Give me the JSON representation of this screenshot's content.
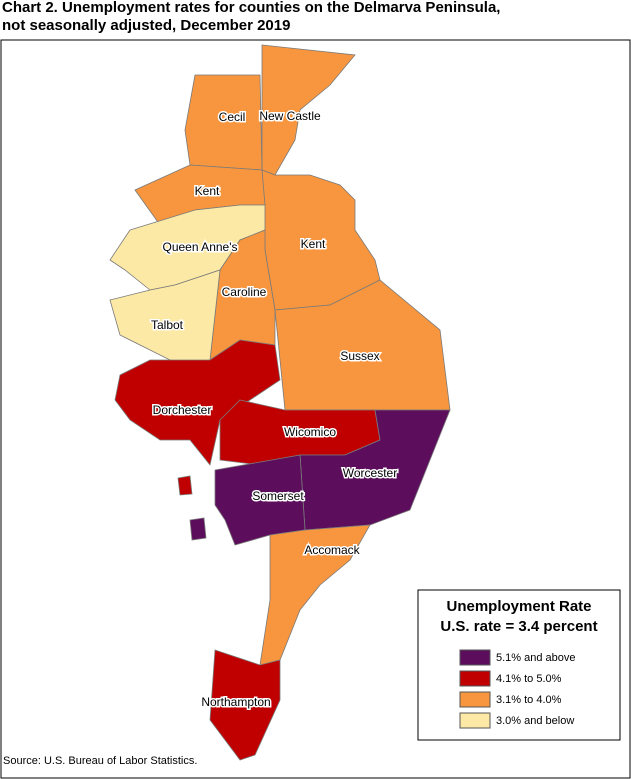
{
  "title": [
    "Chart 2. Unemployment rates for counties on the Delmarva Peninsula,",
    "not seasonally adjusted, December 2019"
  ],
  "counties": [
    {
      "name": "New Castle",
      "color": "#f7963e"
    },
    {
      "name": "Kent",
      "color": "#f7963e"
    },
    {
      "name": "Sussex",
      "color": "#f7963e"
    },
    {
      "name": "Cecil",
      "color": "#f7963e"
    },
    {
      "name": "Kent",
      "color": "#f7963e"
    },
    {
      "name": "Queen Anne's",
      "color": "#fde9a6"
    },
    {
      "name": "Caroline",
      "color": "#f7963e"
    },
    {
      "name": "Talbot",
      "color": "#fde9a6"
    },
    {
      "name": "Dorchester",
      "color": "#c00000"
    },
    {
      "name": "Wicomico",
      "color": "#c00000"
    },
    {
      "name": "Worcester",
      "color": "#5c0e5c"
    },
    {
      "name": "Somerset",
      "color": "#5c0e5c"
    },
    {
      "name": "Accomack",
      "color": "#f7963e"
    },
    {
      "name": "Northampton",
      "color": "#c00000"
    }
  ],
  "legend": {
    "title": "Unemployment Rate",
    "subtitle": "U.S. rate = 3.4 percent",
    "items": [
      {
        "label": "5.1% and above",
        "color": "#5c0e5c"
      },
      {
        "label": "4.1% to 5.0%",
        "color": "#c00000"
      },
      {
        "label": "3.1% to 4.0%",
        "color": "#f7963e"
      },
      {
        "label": "3.0% and below",
        "color": "#fde9a6"
      }
    ]
  },
  "source": "Source: U.S. Bureau of Labor Statistics."
}
